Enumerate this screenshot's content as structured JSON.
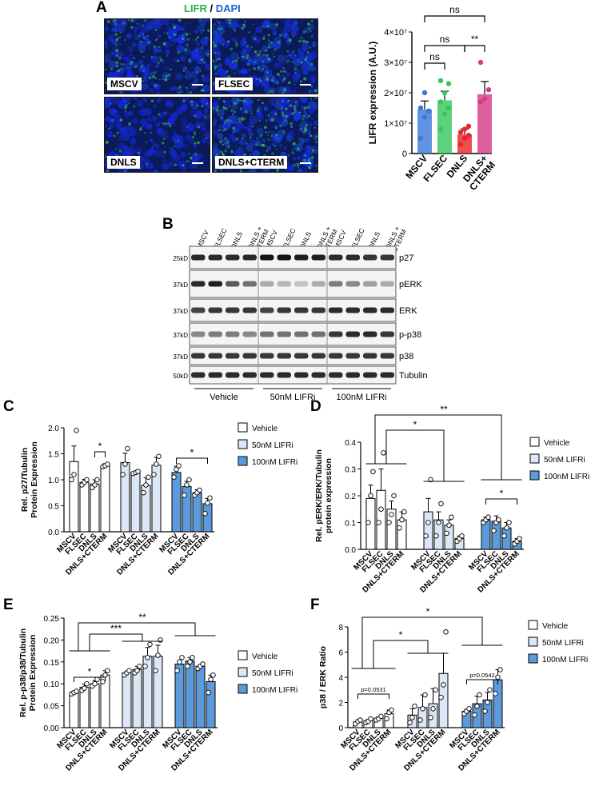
{
  "panel_labels": {
    "a": "A",
    "b": "B",
    "c": "C",
    "d": "D",
    "e": "E",
    "f": "F"
  },
  "panelA": {
    "title_lifr": "LIFR",
    "title_sep": " / ",
    "title_dapi": "DAPI",
    "images": [
      {
        "label": "MSCV"
      },
      {
        "label": "FLSEC"
      },
      {
        "label": "DNLS"
      },
      {
        "label": "DNLS+CTERM"
      }
    ]
  },
  "colors": {
    "lifr_green": "#2db34a",
    "dapi_blue": "#1f5fd1",
    "mscv": "#3b78d8",
    "flsec": "#35c65a",
    "dnls": "#e8262b",
    "cterm": "#d63a86",
    "c_light": "#dbe6f6",
    "c_dark": "#5b9bdc"
  },
  "chart_data": [
    {
      "id": "A",
      "type": "bar",
      "categories": [
        "MSCV",
        "FLSEC",
        "DNLS",
        "DNLS+\nCTERM"
      ],
      "values": [
        14500000.0,
        17500000.0,
        6300000.0,
        19500000.0
      ],
      "errors": [
        2800000.0,
        3000000.0,
        1800000.0,
        4200000.0
      ],
      "points": [
        [
          5000000.0,
          12000000.0,
          14000000.0,
          15000000.0,
          20000000.0
        ],
        [
          8000000.0,
          13000000.0,
          15000000.0,
          17000000.0,
          20000000.0,
          23000000.0,
          24000000.0
        ],
        [
          3000000.0,
          5000000.0,
          6000000.0,
          7000000.0,
          8000000.0,
          9000000.0
        ],
        [
          17000000.0,
          18000000.0,
          21000000.0,
          30000000.0
        ]
      ],
      "ylabel": "LIFR expression (A.U.)",
      "ylim": [
        0,
        40000000.0
      ],
      "yticks": [
        "0",
        "1×10⁷",
        "2×10⁷",
        "3×10⁷",
        "4×10⁷"
      ],
      "annotations": [
        "ns",
        "ns",
        "ns",
        "**"
      ]
    },
    {
      "id": "C",
      "type": "bar",
      "groups": [
        "Vehicle",
        "50nM LIFRi",
        "100nM LIFRi"
      ],
      "categories": [
        "MSCV",
        "FLSEC",
        "DNLS",
        "DNLS+CTERM"
      ],
      "series": [
        {
          "name": "Vehicle",
          "values": [
            1.35,
            0.95,
            0.92,
            1.27
          ],
          "errors": [
            0.3,
            0.06,
            0.08,
            0.04
          ],
          "points": [
            [
              1.0,
              1.1,
              1.95
            ],
            [
              0.9,
              0.95,
              1.0
            ],
            [
              0.85,
              0.9,
              1.0
            ],
            [
              1.25,
              1.27,
              1.3
            ]
          ]
        },
        {
          "name": "50nM LIFRi",
          "values": [
            1.33,
            1.14,
            0.89,
            1.28
          ],
          "errors": [
            0.18,
            0.02,
            0.15,
            0.15
          ],
          "points": [
            [
              1.1,
              1.3,
              1.6
            ],
            [
              1.12,
              1.14,
              1.16
            ],
            [
              0.75,
              0.9,
              1.05
            ],
            [
              1.1,
              1.3,
              1.45
            ]
          ]
        },
        {
          "name": "100nM LIFRi",
          "values": [
            1.14,
            0.87,
            0.75,
            0.54
          ],
          "errors": [
            0.12,
            0.1,
            0.06,
            0.1
          ],
          "points": [
            [
              1.05,
              1.2,
              1.27
            ],
            [
              0.7,
              0.9,
              1.0
            ],
            [
              0.7,
              0.75,
              0.8
            ],
            [
              0.35,
              0.55,
              0.65
            ]
          ]
        }
      ],
      "ylabel_lines": [
        "Rel. p27/Tubulin",
        "Protein Expression"
      ],
      "ylim": [
        0,
        2.0
      ],
      "yticks": [
        "0.0",
        "0.5",
        "1.0",
        "1.5",
        "2.0"
      ],
      "annotations": [
        "*",
        "*"
      ]
    },
    {
      "id": "D",
      "type": "bar",
      "groups": [
        "Vehicle",
        "50nM LIFRi",
        "100nM LIFRi"
      ],
      "categories": [
        "MSCV",
        "FLSEC",
        "DNLS",
        "DNLS+CTERM"
      ],
      "series": [
        {
          "name": "Vehicle",
          "values": [
            0.19,
            0.22,
            0.15,
            0.11
          ],
          "errors": [
            0.05,
            0.08,
            0.03,
            0.03
          ],
          "points": [
            [
              0.1,
              0.2,
              0.29
            ],
            [
              0.1,
              0.15,
              0.36
            ],
            [
              0.1,
              0.13,
              0.2
            ],
            [
              0.08,
              0.11,
              0.14
            ]
          ]
        },
        {
          "name": "50nM LIFRi",
          "values": [
            0.14,
            0.11,
            0.09,
            0.04
          ],
          "errors": [
            0.05,
            0.03,
            0.02,
            0.01
          ],
          "points": [
            [
              0.05,
              0.1,
              0.26
            ],
            [
              0.05,
              0.1,
              0.17
            ],
            [
              0.06,
              0.09,
              0.12
            ],
            [
              0.03,
              0.04,
              0.05
            ]
          ]
        },
        {
          "name": "100nM LIFRi",
          "values": [
            0.11,
            0.105,
            0.08,
            0.03
          ],
          "errors": [
            0.01,
            0.02,
            0.02,
            0.01
          ],
          "points": [
            [
              0.1,
              0.11,
              0.12
            ],
            [
              0.07,
              0.1,
              0.11
            ],
            [
              0.05,
              0.08,
              0.1
            ],
            [
              0.02,
              0.03,
              0.04
            ]
          ]
        }
      ],
      "ylabel_lines": [
        "Rel. pERK/ERK/Tubulin",
        "protein expression"
      ],
      "ylim": [
        0,
        0.4
      ],
      "yticks": [
        "0.0",
        "0.1",
        "0.2",
        "0.3",
        "0.4"
      ],
      "legend": [
        "Vehicle",
        "50nM LIFRi",
        "100nM  LIFRi"
      ],
      "annotations": [
        "*",
        "**",
        "*"
      ]
    },
    {
      "id": "E",
      "type": "bar",
      "groups": [
        "Vehicle",
        "50nM LIFRi",
        "100nM LIFRi"
      ],
      "categories": [
        "MSCV",
        "FLSEC",
        "DNLS",
        "DNLS+CTERM"
      ],
      "series": [
        {
          "name": "Vehicle",
          "values": [
            0.08,
            0.092,
            0.1,
            0.12
          ],
          "errors": [
            0.003,
            0.008,
            0.007,
            0.01
          ],
          "points": [
            [
              0.077,
              0.08,
              0.083
            ],
            [
              0.085,
              0.09,
              0.1
            ],
            [
              0.095,
              0.1,
              0.11
            ],
            [
              0.105,
              0.12,
              0.13
            ]
          ]
        },
        {
          "name": "50nM LIFRi",
          "values": [
            0.125,
            0.133,
            0.163,
            0.163
          ],
          "errors": [
            0.004,
            0.007,
            0.02,
            0.025
          ],
          "points": [
            [
              0.12,
              0.125,
              0.13
            ],
            [
              0.125,
              0.13,
              0.14
            ],
            [
              0.14,
              0.16,
              0.19
            ],
            [
              0.13,
              0.165,
              0.2
            ]
          ]
        },
        {
          "name": "100nM LIFRi",
          "values": [
            0.145,
            0.152,
            0.14,
            0.105
          ],
          "errors": [
            0.008,
            0.008,
            0.003,
            0.015
          ],
          "points": [
            [
              0.13,
              0.15,
              0.16
            ],
            [
              0.14,
              0.15,
              0.16
            ],
            [
              0.135,
              0.14,
              0.145
            ],
            [
              0.08,
              0.11,
              0.12
            ]
          ]
        }
      ],
      "ylabel_lines": [
        "Rel. p-p38/p38/Tubulin",
        "Protein Expression"
      ],
      "ylim": [
        0,
        0.25
      ],
      "yticks": [
        "0.00",
        "0.05",
        "0.10",
        "0.15",
        "0.20",
        "0.25"
      ],
      "legend": [
        "Vehicle",
        "50nM  LIFRi",
        "100nM  LIFRi"
      ],
      "annotations": [
        "*",
        "***",
        "**"
      ]
    },
    {
      "id": "F",
      "type": "bar",
      "groups": [
        "Vehicle",
        "50nM LIFRi",
        "100nM LIFRi"
      ],
      "categories": [
        "MSCV",
        "FLSEC",
        "DNLS",
        "DNLS+CTERM"
      ],
      "series": [
        {
          "name": "Vehicle",
          "values": [
            0.45,
            0.55,
            0.75,
            1.1
          ],
          "errors": [
            0.1,
            0.1,
            0.1,
            0.3
          ],
          "points": [
            [
              0.3,
              0.5,
              0.6
            ],
            [
              0.4,
              0.5,
              0.7
            ],
            [
              0.6,
              0.7,
              0.9
            ],
            [
              0.7,
              1.2,
              1.4
            ]
          ]
        },
        {
          "name": "50nM LIFRi",
          "values": [
            1.0,
            1.6,
            1.9,
            4.3
          ],
          "errors": [
            0.5,
            1.0,
            1.2,
            1.6
          ],
          "points": [
            [
              0.4,
              0.8,
              1.7
            ],
            [
              0.6,
              1.5,
              2.6
            ],
            [
              0.8,
              1.5,
              3.0
            ],
            [
              2.4,
              3.4,
              7.6
            ]
          ]
        },
        {
          "name": "100nM LIFRi",
          "values": [
            1.3,
            1.9,
            2.2,
            3.8
          ],
          "errors": [
            0.15,
            0.6,
            0.6,
            0.8
          ],
          "points": [
            [
              1.1,
              1.3,
              1.5
            ],
            [
              1.0,
              1.7,
              2.6
            ],
            [
              1.3,
              2.0,
              3.0
            ],
            [
              2.7,
              4.0,
              4.6
            ]
          ]
        }
      ],
      "ylabel": "p38 / ERK  Ratio",
      "ylim": [
        0,
        8
      ],
      "yticks": [
        "0",
        "2",
        "4",
        "6",
        "8"
      ],
      "legend": [
        "Vehicle",
        "50nM LIFRi",
        "100nM LIFRi"
      ],
      "annotations": [
        "p=0.0531",
        "p=0.0542",
        "*",
        "*"
      ]
    }
  ],
  "panelB": {
    "lane_labels": [
      "MSCV",
      "FLSEC",
      "DNLS",
      "DNLS +\nCTERM",
      "MSCV",
      "FLSEC",
      "DNLS",
      "DNLS +\nCTERM",
      "MSCV",
      "FLSEC",
      "DNLS",
      "DNLS +\nCTERM"
    ],
    "blots": [
      {
        "name": "p27",
        "marker": "25kD"
      },
      {
        "name": "pERK",
        "marker": "37kD"
      },
      {
        "name": "ERK",
        "marker": "37kD"
      },
      {
        "name": "p-p38",
        "marker": "37kD"
      },
      {
        "name": "p38",
        "marker": "37kD"
      },
      {
        "name": "Tubulin",
        "marker": "50kD"
      }
    ],
    "groups": [
      "Vehicle",
      "50nM LIFRi",
      "100nM LIFRi"
    ]
  }
}
